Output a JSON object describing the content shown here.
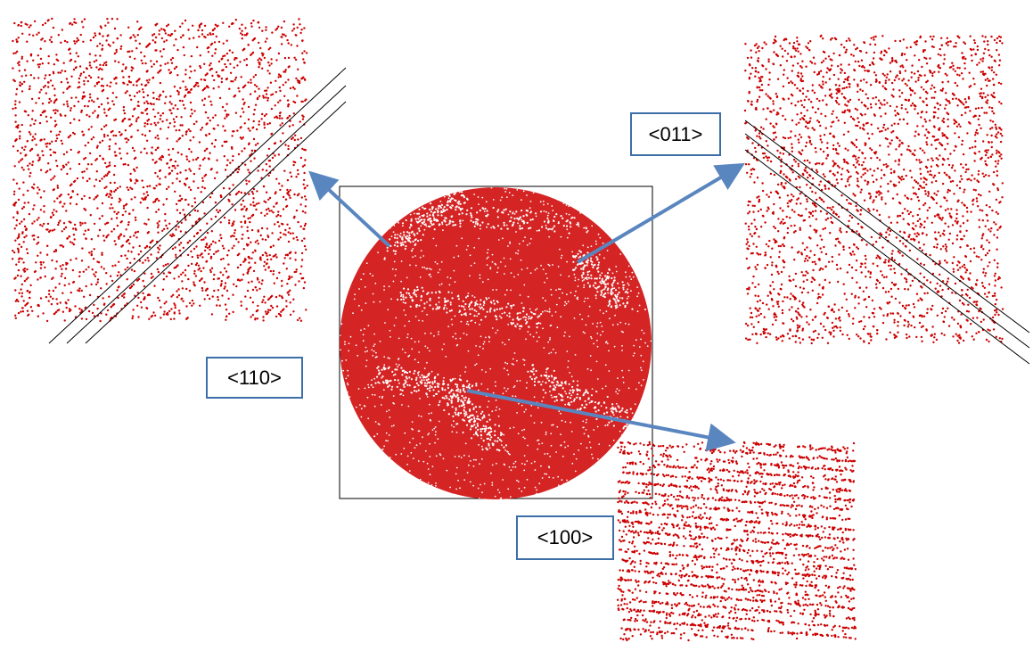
{
  "figure": {
    "colors": {
      "point": "#cc0000",
      "arrow": "#5a86c0",
      "label_border": "#3e6ea8",
      "frame": "#000000"
    },
    "central_map": {
      "shape": "circle-in-square",
      "description_icon": "scatter-density-disc"
    },
    "zoom_panels": [
      {
        "direction": "<110>",
        "pattern": "diagonal-lines-rising"
      },
      {
        "direction": "<011>",
        "pattern": "diagonal-lines-falling"
      },
      {
        "direction": "<100>",
        "pattern": "horizontal-rows"
      }
    ],
    "labels": {
      "d110": "<110>",
      "d011": "<011>",
      "d100": "<100>"
    }
  }
}
